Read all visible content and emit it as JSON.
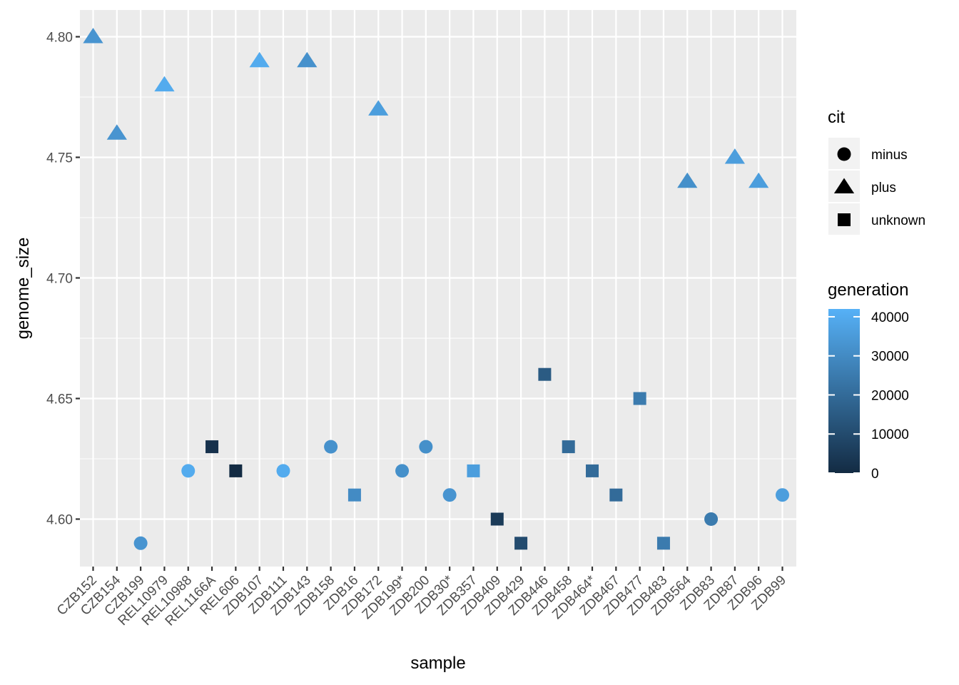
{
  "chart_data": {
    "type": "scatter",
    "xlabel": "sample",
    "ylabel": "genome_size",
    "ylim": [
      4.58,
      4.81
    ],
    "yticks": [
      4.6,
      4.65,
      4.7,
      4.75,
      4.8
    ],
    "ytick_labels": [
      "4.60",
      "4.65",
      "4.70",
      "4.75",
      "4.80"
    ],
    "grid": true,
    "categories": [
      "CZB152",
      "CZB154",
      "CZB199",
      "REL10979",
      "REL10988",
      "REL1166A",
      "REL606",
      "ZDB107",
      "ZDB111",
      "ZDB143",
      "ZDB158",
      "ZDB16",
      "ZDB172",
      "ZDB199*",
      "ZDB200",
      "ZDB30*",
      "ZDB357",
      "ZDB409",
      "ZDB429",
      "ZDB446",
      "ZDB458",
      "ZDB464*",
      "ZDB467",
      "ZDB477",
      "ZDB483",
      "ZDB564",
      "ZDB83",
      "ZDB87",
      "ZDB96",
      "ZDB99"
    ],
    "points": [
      {
        "sample": "CZB152",
        "genome_size": 4.8,
        "cit": "plus",
        "generation": 33000
      },
      {
        "sample": "CZB154",
        "genome_size": 4.76,
        "cit": "plus",
        "generation": 33000
      },
      {
        "sample": "CZB199",
        "genome_size": 4.59,
        "cit": "minus",
        "generation": 33000
      },
      {
        "sample": "REL10979",
        "genome_size": 4.78,
        "cit": "plus",
        "generation": 40000
      },
      {
        "sample": "REL10988",
        "genome_size": 4.62,
        "cit": "minus",
        "generation": 40000
      },
      {
        "sample": "REL1166A",
        "genome_size": 4.63,
        "cit": "unknown",
        "generation": 2000
      },
      {
        "sample": "REL606",
        "genome_size": 4.62,
        "cit": "unknown",
        "generation": 0
      },
      {
        "sample": "ZDB107",
        "genome_size": 4.79,
        "cit": "plus",
        "generation": 40000
      },
      {
        "sample": "ZDB111",
        "genome_size": 4.62,
        "cit": "minus",
        "generation": 40000
      },
      {
        "sample": "ZDB143",
        "genome_size": 4.79,
        "cit": "plus",
        "generation": 32000
      },
      {
        "sample": "ZDB158",
        "genome_size": 4.63,
        "cit": "minus",
        "generation": 32000
      },
      {
        "sample": "ZDB16",
        "genome_size": 4.61,
        "cit": "unknown",
        "generation": 30000
      },
      {
        "sample": "ZDB172",
        "genome_size": 4.77,
        "cit": "plus",
        "generation": 36000
      },
      {
        "sample": "ZDB199*",
        "genome_size": 4.62,
        "cit": "minus",
        "generation": 31500
      },
      {
        "sample": "ZDB200",
        "genome_size": 4.63,
        "cit": "minus",
        "generation": 31500
      },
      {
        "sample": "ZDB30*",
        "genome_size": 4.61,
        "cit": "minus",
        "generation": 33000
      },
      {
        "sample": "ZDB357",
        "genome_size": 4.62,
        "cit": "unknown",
        "generation": 36000
      },
      {
        "sample": "ZDB409",
        "genome_size": 4.6,
        "cit": "unknown",
        "generation": 5000
      },
      {
        "sample": "ZDB429",
        "genome_size": 4.59,
        "cit": "unknown",
        "generation": 10000
      },
      {
        "sample": "ZDB446",
        "genome_size": 4.66,
        "cit": "unknown",
        "generation": 15000
      },
      {
        "sample": "ZDB458",
        "genome_size": 4.63,
        "cit": "unknown",
        "generation": 20000
      },
      {
        "sample": "ZDB464*",
        "genome_size": 4.62,
        "cit": "unknown",
        "generation": 20000
      },
      {
        "sample": "ZDB467",
        "genome_size": 4.61,
        "cit": "unknown",
        "generation": 20000
      },
      {
        "sample": "ZDB477",
        "genome_size": 4.65,
        "cit": "unknown",
        "generation": 25000
      },
      {
        "sample": "ZDB483",
        "genome_size": 4.59,
        "cit": "unknown",
        "generation": 25000
      },
      {
        "sample": "ZDB564",
        "genome_size": 4.74,
        "cit": "plus",
        "generation": 31500
      },
      {
        "sample": "ZDB83",
        "genome_size": 4.6,
        "cit": "minus",
        "generation": 25000
      },
      {
        "sample": "ZDB87",
        "genome_size": 4.75,
        "cit": "plus",
        "generation": 36000
      },
      {
        "sample": "ZDB96",
        "genome_size": 4.74,
        "cit": "plus",
        "generation": 36000
      },
      {
        "sample": "ZDB99",
        "genome_size": 4.61,
        "cit": "minus",
        "generation": 36000
      }
    ],
    "legend": {
      "placement": "right",
      "shape": {
        "title": "cit",
        "entries": [
          {
            "label": "minus",
            "shape": "circle"
          },
          {
            "label": "plus",
            "shape": "triangle"
          },
          {
            "label": "unknown",
            "shape": "square"
          }
        ]
      },
      "color": {
        "title": "generation",
        "range": [
          0,
          42000
        ],
        "ticks": [
          0,
          10000,
          20000,
          30000,
          40000
        ],
        "tick_labels": [
          "0",
          "10000",
          "20000",
          "30000",
          "40000"
        ],
        "low_color": "#132b43",
        "high_color": "#56b1f7"
      }
    },
    "colors": {
      "panel_background": "#ebebeb",
      "grid_line": "#ffffff"
    }
  }
}
